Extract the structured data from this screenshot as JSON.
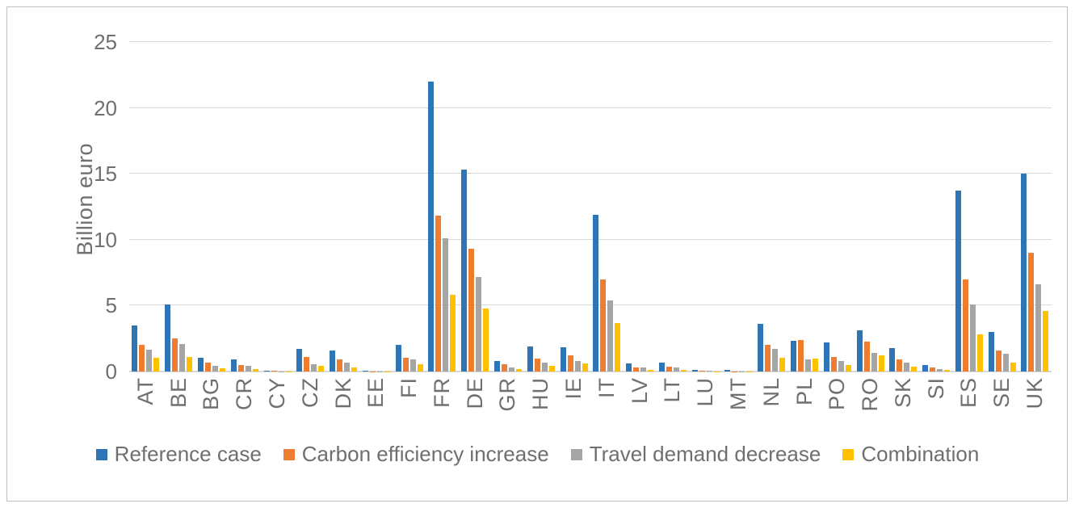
{
  "chart_data": {
    "type": "bar",
    "title": "",
    "ylabel": "Billion euro",
    "xlabel": "",
    "ylim": [
      0,
      25
    ],
    "yticks": [
      0,
      5,
      10,
      15,
      20,
      25
    ],
    "grid": true,
    "legend_position": "bottom",
    "categories": [
      "AT",
      "BE",
      "BG",
      "CR",
      "CY",
      "CZ",
      "DK",
      "EE",
      "FI",
      "FR",
      "DE",
      "GR",
      "HU",
      "IE",
      "IT",
      "LV",
      "LT",
      "LU",
      "MT",
      "NL",
      "PL",
      "PO",
      "RO",
      "SK",
      "SI",
      "ES",
      "SE",
      "UK"
    ],
    "series": [
      {
        "name": "Reference case",
        "color": "#2e75b6",
        "values": [
          3.5,
          5.1,
          1.05,
          0.9,
          0.05,
          1.7,
          1.6,
          0.05,
          2.0,
          22.0,
          15.3,
          0.8,
          1.9,
          1.85,
          11.9,
          0.6,
          0.7,
          0.1,
          0.1,
          3.6,
          2.35,
          2.2,
          3.15,
          1.75,
          0.5,
          13.7,
          3.0,
          15.0
        ]
      },
      {
        "name": "Carbon efficiency increase",
        "color": "#ed7d31",
        "values": [
          2.0,
          2.5,
          0.65,
          0.5,
          0.05,
          1.1,
          0.9,
          0.03,
          1.05,
          11.8,
          9.3,
          0.55,
          1.0,
          1.2,
          7.0,
          0.3,
          0.35,
          0.05,
          0.03,
          2.0,
          2.4,
          1.1,
          2.25,
          0.9,
          0.3,
          7.0,
          1.6,
          9.0
        ]
      },
      {
        "name": "Travel demand decrease",
        "color": "#a5a5a5",
        "values": [
          1.65,
          2.1,
          0.45,
          0.4,
          0.03,
          0.55,
          0.65,
          0.02,
          0.95,
          10.1,
          7.2,
          0.3,
          0.7,
          0.8,
          5.4,
          0.28,
          0.28,
          0.04,
          0.02,
          1.7,
          0.9,
          0.8,
          1.4,
          0.65,
          0.18,
          5.1,
          1.35,
          6.6
        ]
      },
      {
        "name": "Combination",
        "color": "#ffc000",
        "values": [
          1.05,
          1.1,
          0.25,
          0.2,
          0.02,
          0.4,
          0.3,
          0.02,
          0.55,
          5.8,
          4.75,
          0.2,
          0.4,
          0.6,
          3.7,
          0.15,
          0.12,
          0.03,
          0.02,
          1.05,
          1.0,
          0.5,
          1.25,
          0.35,
          0.1,
          2.8,
          0.7,
          4.6
        ]
      }
    ],
    "colors": {
      "gridline": "#d9d9d9",
      "axis_text": "#6f6f6f",
      "frame_border": "#bfbfbf"
    }
  }
}
